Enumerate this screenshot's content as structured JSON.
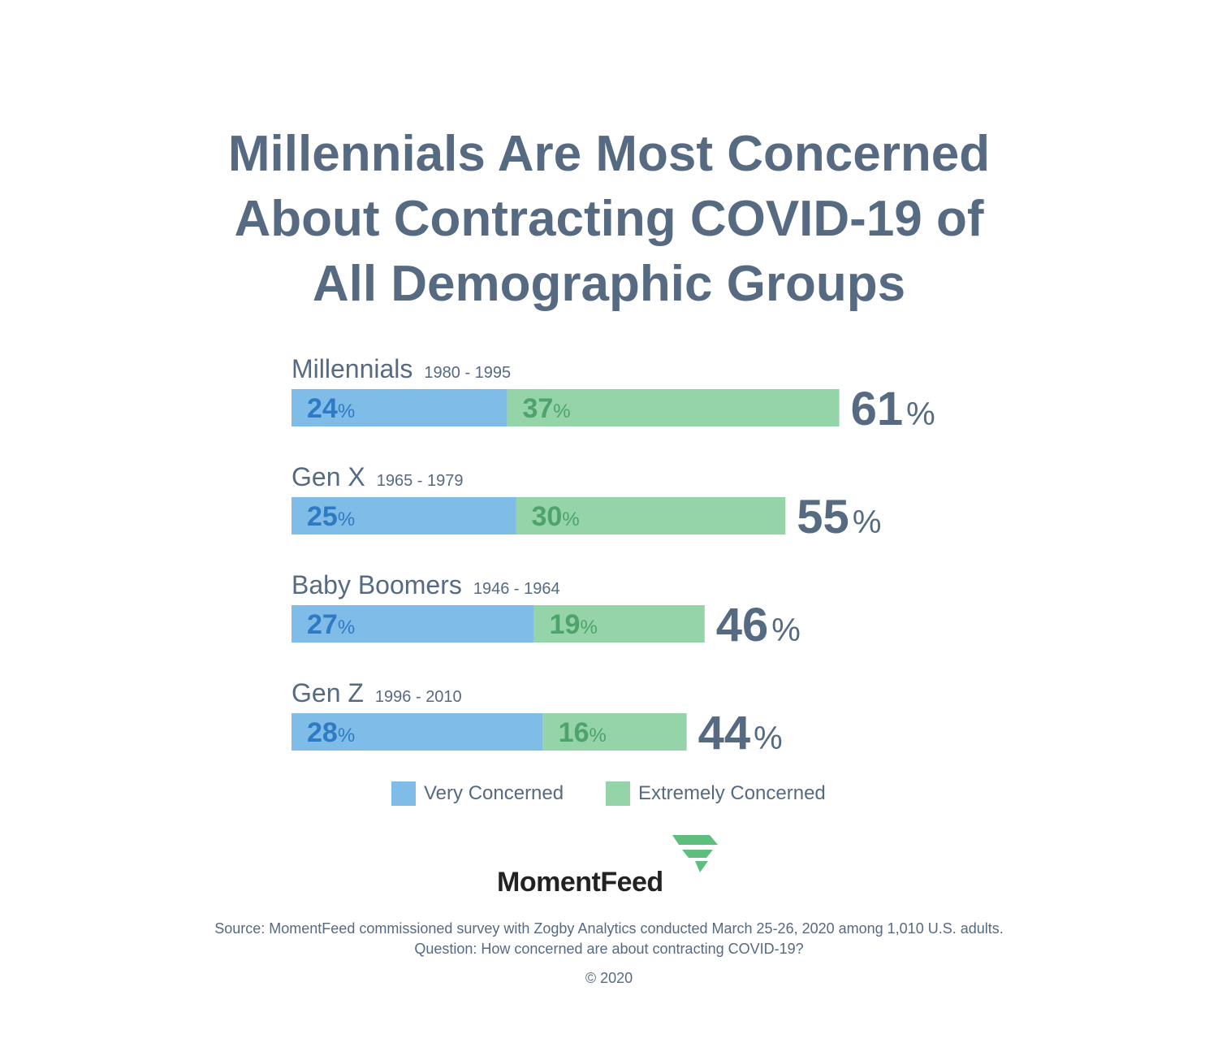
{
  "title": {
    "line1": "Millennials Are Most Concerned",
    "line2": "About Contracting COVID-19 of",
    "line3": "All Demographic Groups"
  },
  "chart_data": {
    "type": "bar",
    "orientation": "horizontal",
    "stacked": true,
    "title": "Millennials Are Most Concerned About Contracting COVID-19 of All Demographic Groups",
    "categories": [
      "Millennials",
      "Gen X",
      "Baby Boomers",
      "Gen Z"
    ],
    "category_years": [
      "1980 - 1995",
      "1965 - 1979",
      "1946 - 1964",
      "1996 - 2010"
    ],
    "series": [
      {
        "name": "Very Concerned",
        "values": [
          24,
          25,
          27,
          28
        ],
        "color": "#7fbce8",
        "label_color": "#2e7bc4"
      },
      {
        "name": "Extremely Concerned",
        "values": [
          37,
          30,
          19,
          16
        ],
        "color": "#95d3a9",
        "label_color": "#4ea36a"
      }
    ],
    "totals": [
      61,
      55,
      46,
      44
    ],
    "unit": "%",
    "total_color": "#566a82",
    "legend_position": "bottom-center",
    "grid": false
  },
  "legend": {
    "very_label": "Very Concerned",
    "extremely_label": "Extremely Concerned",
    "very_color": "#7fbce8",
    "extremely_color": "#95d3a9"
  },
  "logo": {
    "text": "MomentFeed",
    "mark_color": "#5cbf7e"
  },
  "source": {
    "line1": "Source: MomentFeed commissioned survey with Zogby Analytics conducted March 25-26, 2020 among 1,010 U.S. adults.",
    "line2": "Question: How concerned are about contracting COVID-19?"
  },
  "copyright": "© 2020"
}
